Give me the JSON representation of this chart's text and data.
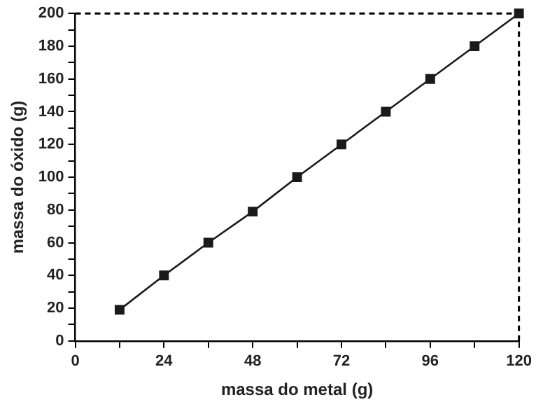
{
  "chart_data": {
    "type": "line",
    "xlabel": "massa do metal (g)",
    "ylabel": "massa do óxido (g)",
    "x": [
      12,
      24,
      36,
      48,
      60,
      72,
      84,
      96,
      108,
      120
    ],
    "series": [
      {
        "color": "#1a1a1a",
        "values": [
          19,
          40,
          60,
          79,
          100,
          120,
          140,
          160,
          180,
          200
        ]
      }
    ],
    "xlim": [
      0,
      120
    ],
    "ylim": [
      0,
      200
    ],
    "xticks": [
      0,
      {
        "value": 12,
        "label": null
      },
      24,
      {
        "value": 36,
        "label": null
      },
      48,
      {
        "value": 60,
        "label": null
      },
      72,
      {
        "value": 84,
        "label": null
      },
      96,
      {
        "value": 108,
        "label": null
      },
      120
    ],
    "yticks": [
      0,
      {
        "value": 10,
        "label": null
      },
      20,
      {
        "value": 30,
        "label": null
      },
      40,
      {
        "value": 50,
        "label": null
      },
      60,
      {
        "value": 70,
        "label": null
      },
      80,
      {
        "value": 90,
        "label": null
      },
      100,
      {
        "value": 110,
        "label": null
      },
      120,
      {
        "value": 130,
        "label": null
      },
      140,
      {
        "value": 150,
        "label": null
      },
      160,
      {
        "value": 170,
        "label": null
      },
      180,
      {
        "value": 190,
        "label": null
      },
      200
    ],
    "ref_lines": [
      {
        "axis": "x",
        "value": 120,
        "line_style": "dashed",
        "color": "#000000"
      },
      {
        "axis": "y",
        "value": 200,
        "line_style": "dashed",
        "color": "#000000"
      }
    ],
    "marker": "square",
    "line_style": "solid",
    "grid": false,
    "legend": false
  }
}
